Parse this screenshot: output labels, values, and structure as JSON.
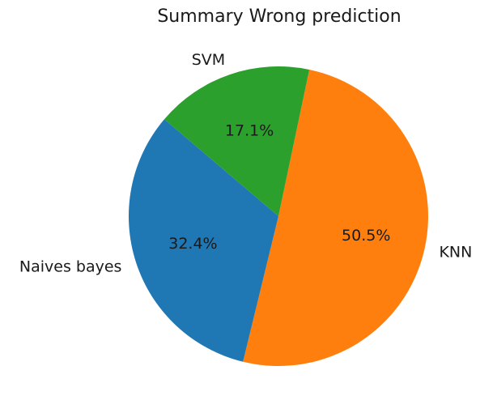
{
  "chart_data": {
    "type": "pie",
    "title": "Summary Wrong prediction",
    "slices": [
      {
        "label": "KNN",
        "value": 50.5,
        "pct_label": "50.5%",
        "color": "#ff7f0e"
      },
      {
        "label": "Naives bayes",
        "value": 32.4,
        "pct_label": "32.4%",
        "color": "#1f77b4"
      },
      {
        "label": "SVM",
        "value": 17.1,
        "pct_label": "17.1%",
        "color": "#2ca02c"
      }
    ],
    "start_angle_deg": 78.1,
    "direction": "clockwise",
    "legend": "none"
  }
}
